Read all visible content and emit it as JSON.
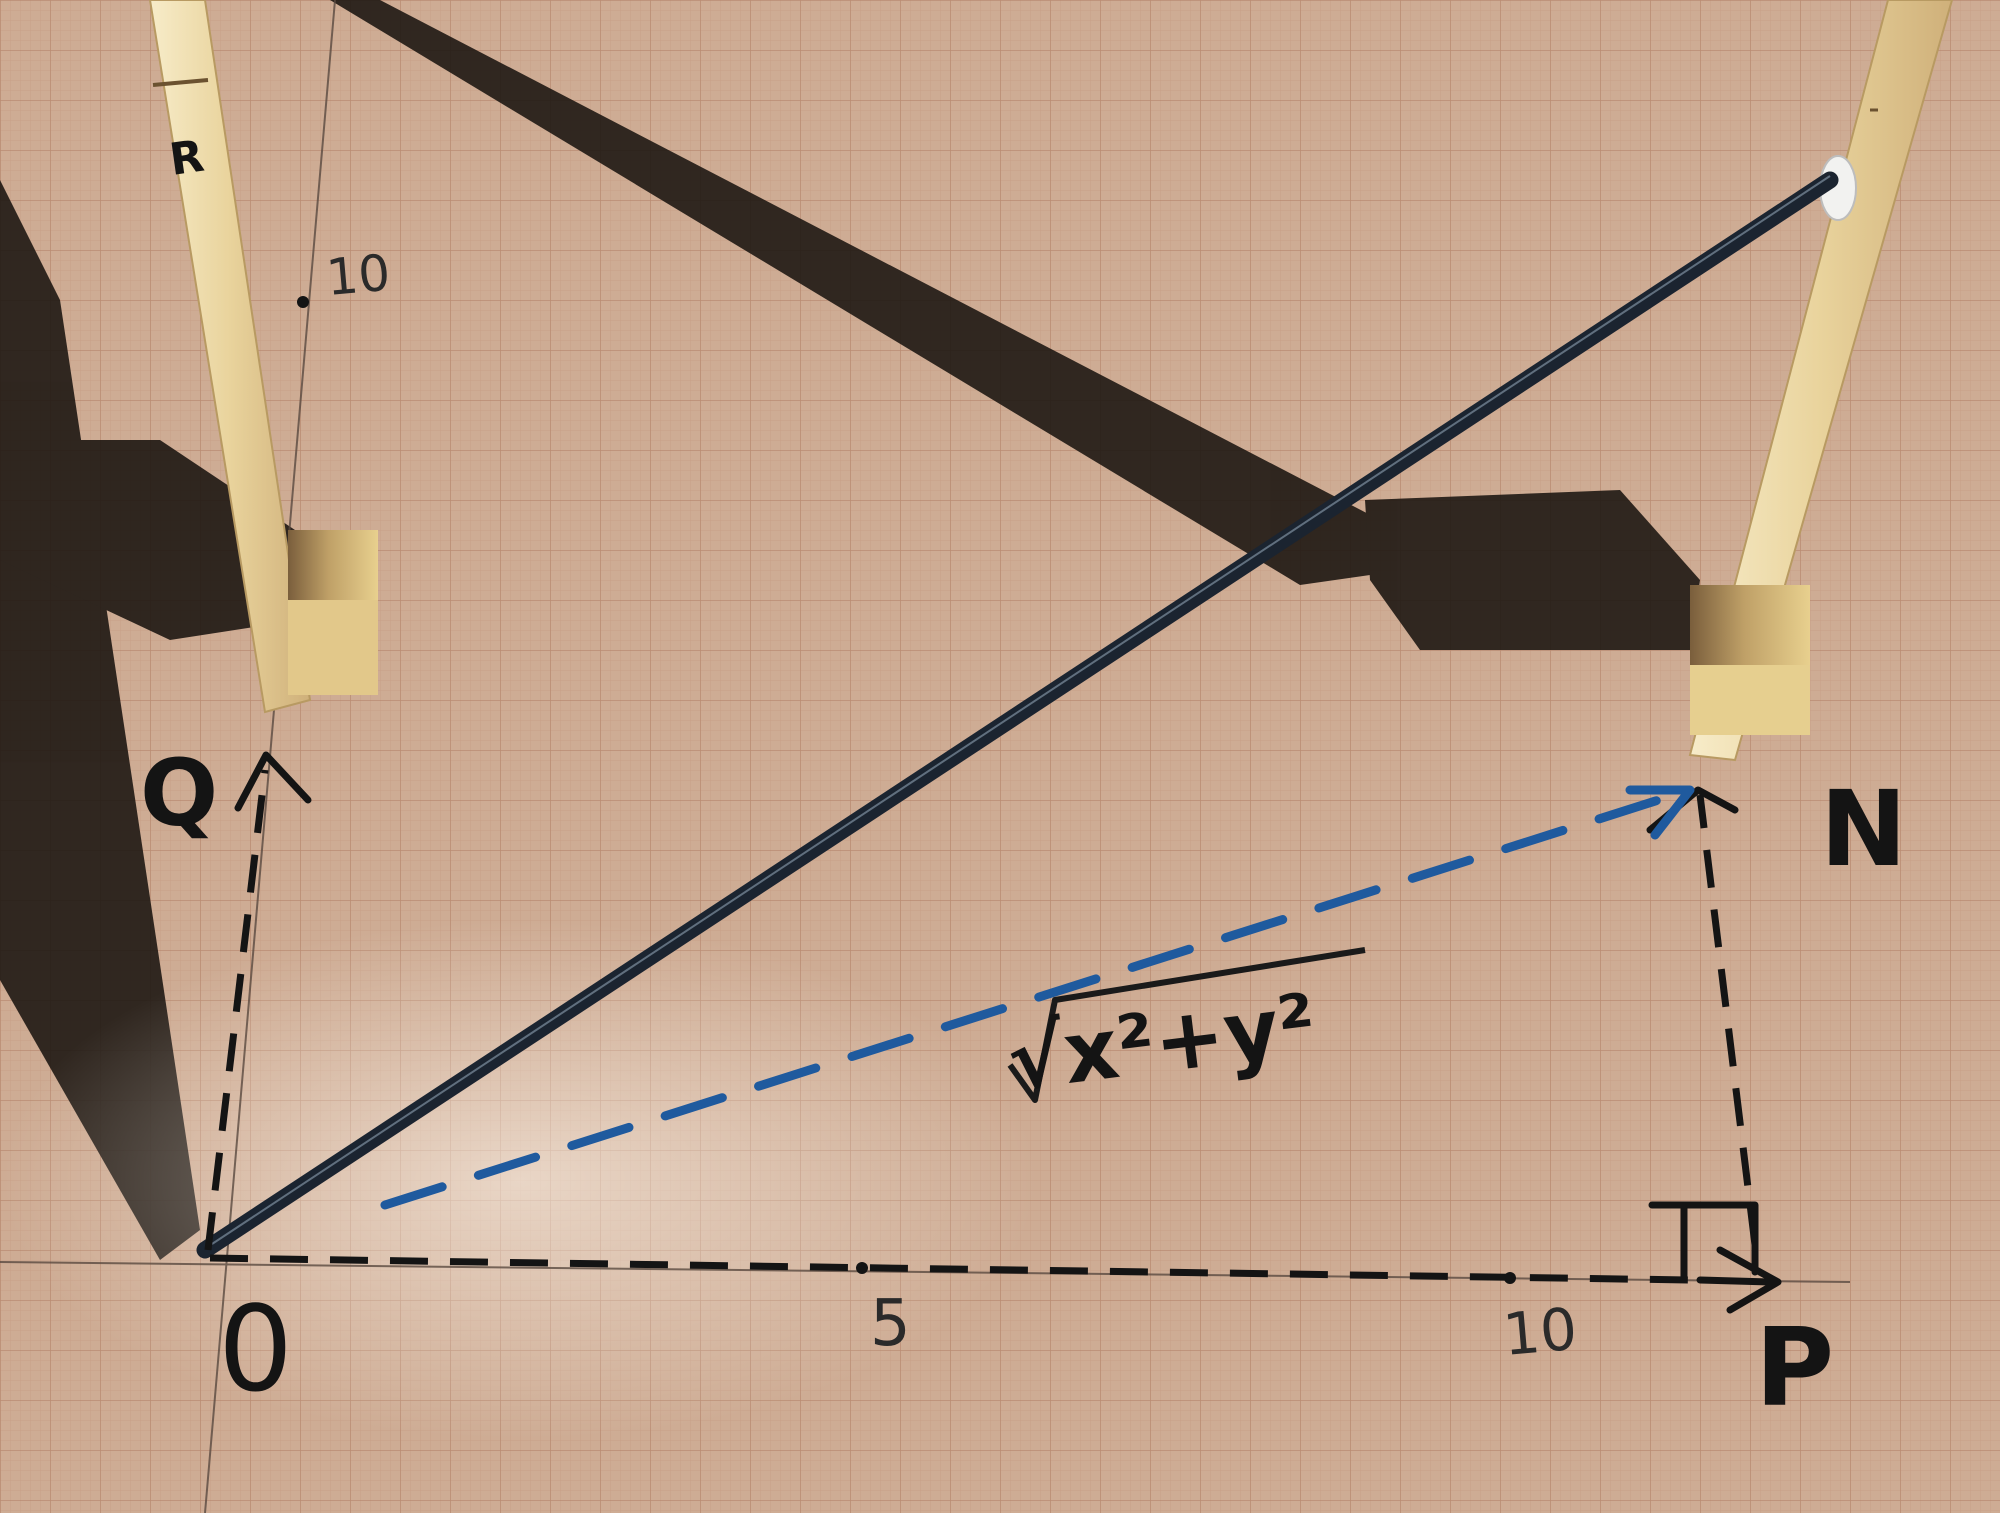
{
  "labels": {
    "point_r": "R",
    "point_q": "Q",
    "point_n": "N",
    "point_p": "P",
    "origin": "0",
    "x_tick_5": "5",
    "x_tick_10": "10",
    "y_tick_10": "10",
    "formula": "√x²+y²"
  },
  "colors": {
    "paper": "#c9a78f",
    "grid_line": "#b7866d",
    "ink_black": "#141414",
    "ink_blue": "#1f5a9e",
    "stick": "#ecd9a8",
    "rod": "#1b2430",
    "shadow": "#1a1410"
  }
}
